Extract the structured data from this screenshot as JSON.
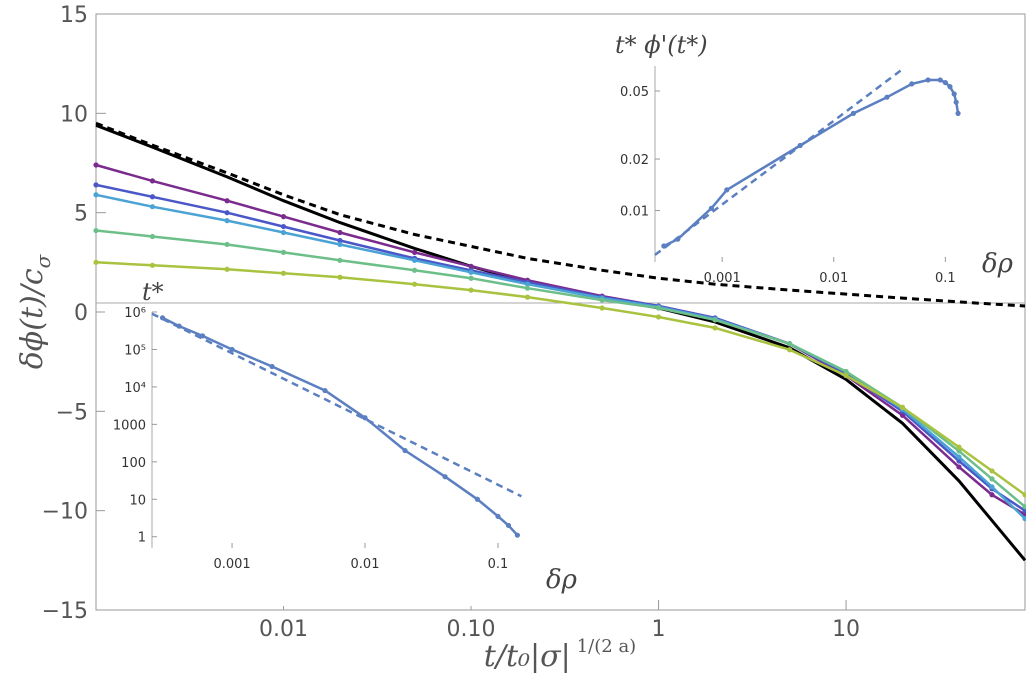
{
  "chart_data": [
    {
      "type": "line",
      "name": "main",
      "xscale": "log",
      "xlim": [
        0.001,
        90
      ],
      "ylim": [
        -15,
        15
      ],
      "xlabel": "t/t₀|σ|",
      "xlabel_exponent": "1/(2 a)",
      "ylabel": "δϕ(t)/c",
      "ylabel_subscript": "σ",
      "xticks": [
        0.01,
        0.1,
        1,
        10
      ],
      "xtick_labels": [
        "0.01",
        "0.10",
        "1",
        "10"
      ],
      "yticks": [
        -15,
        -10,
        -5,
        0,
        5,
        10,
        15
      ],
      "ytick_labels": [
        "−15",
        "−10",
        "−5",
        "0",
        "5",
        "10",
        "15"
      ],
      "series": [
        {
          "name": "black-solid",
          "color": "#000000",
          "dashed": false,
          "markers": false,
          "x": [
            0.001,
            0.002,
            0.005,
            0.01,
            0.02,
            0.05,
            0.1,
            0.2,
            0.5,
            1,
            2,
            5,
            10,
            20,
            40,
            60,
            90
          ],
          "y": [
            9.4,
            8.3,
            6.8,
            5.6,
            4.5,
            3.2,
            2.3,
            1.5,
            0.7,
            0.2,
            -0.5,
            -1.8,
            -3.4,
            -5.6,
            -8.5,
            -10.5,
            -12.5
          ]
        },
        {
          "name": "black-dashed",
          "color": "#000000",
          "dashed": true,
          "markers": false,
          "x": [
            0.001,
            0.002,
            0.005,
            0.01,
            0.02,
            0.05,
            0.1,
            0.2,
            0.5,
            1,
            2,
            5,
            10,
            20,
            50,
            90
          ],
          "y": [
            9.5,
            8.4,
            7.0,
            5.9,
            4.9,
            3.9,
            3.3,
            2.7,
            2.1,
            1.7,
            1.4,
            1.1,
            0.9,
            0.7,
            0.45,
            0.3
          ]
        },
        {
          "name": "purple",
          "color": "#7b2b8e",
          "dashed": false,
          "markers": true,
          "x": [
            0.001,
            0.002,
            0.005,
            0.01,
            0.02,
            0.05,
            0.1,
            0.2,
            0.5,
            1,
            2,
            5,
            10,
            20,
            40,
            60,
            90
          ],
          "y": [
            7.4,
            6.6,
            5.6,
            4.8,
            4.0,
            3.0,
            2.3,
            1.6,
            0.8,
            0.3,
            -0.3,
            -1.6,
            -3.2,
            -5.2,
            -7.8,
            -9.2,
            -10.2
          ]
        },
        {
          "name": "blue",
          "color": "#4a57c8",
          "dashed": false,
          "markers": true,
          "x": [
            0.001,
            0.002,
            0.005,
            0.01,
            0.02,
            0.05,
            0.1,
            0.2,
            0.5,
            1,
            2,
            5,
            10,
            20,
            40,
            60,
            90
          ],
          "y": [
            6.4,
            5.8,
            5.0,
            4.3,
            3.6,
            2.7,
            2.1,
            1.5,
            0.75,
            0.3,
            -0.3,
            -1.6,
            -3.1,
            -5.0,
            -7.5,
            -8.9,
            -10.0
          ]
        },
        {
          "name": "cyan",
          "color": "#4aa3d4",
          "dashed": false,
          "markers": true,
          "x": [
            0.001,
            0.002,
            0.005,
            0.01,
            0.02,
            0.05,
            0.1,
            0.2,
            0.5,
            1,
            2,
            5,
            10,
            20,
            40,
            60,
            90
          ],
          "y": [
            5.9,
            5.3,
            4.6,
            4.0,
            3.4,
            2.6,
            2.0,
            1.4,
            0.7,
            0.25,
            -0.35,
            -1.6,
            -3.0,
            -4.9,
            -7.3,
            -8.8,
            -10.4
          ]
        },
        {
          "name": "green",
          "color": "#6dbf8a",
          "dashed": false,
          "markers": true,
          "x": [
            0.001,
            0.002,
            0.005,
            0.01,
            0.02,
            0.05,
            0.1,
            0.2,
            0.5,
            1,
            2,
            5,
            10,
            20,
            40,
            60,
            90
          ],
          "y": [
            4.1,
            3.8,
            3.4,
            3.0,
            2.6,
            2.1,
            1.7,
            1.2,
            0.6,
            0.2,
            -0.4,
            -1.6,
            -3.0,
            -4.8,
            -7.0,
            -8.4,
            -9.8
          ]
        },
        {
          "name": "yellow-green",
          "color": "#a9c23f",
          "dashed": false,
          "markers": true,
          "x": [
            0.001,
            0.002,
            0.005,
            0.01,
            0.02,
            0.05,
            0.1,
            0.2,
            0.5,
            1,
            2,
            5,
            10,
            20,
            40,
            60,
            90
          ],
          "y": [
            2.5,
            2.35,
            2.15,
            1.95,
            1.75,
            1.4,
            1.1,
            0.75,
            0.2,
            -0.25,
            -0.8,
            -1.9,
            -3.2,
            -4.8,
            -6.8,
            -8.0,
            -9.2
          ]
        }
      ]
    },
    {
      "type": "line",
      "name": "inset-top",
      "xscale": "log",
      "yscale": "log",
      "xlim": [
        0.00025,
        0.15
      ],
      "ylim": [
        0.005,
        0.07
      ],
      "title": "t* ϕ'(t*)",
      "xlabel": "δρ",
      "xticks": [
        0.001,
        0.01,
        0.1
      ],
      "xtick_labels": [
        "0.001",
        "0.01",
        "0.1"
      ],
      "yticks": [
        0.01,
        0.02,
        0.05
      ],
      "ytick_labels": [
        "0.01",
        "0.02",
        "0.05"
      ],
      "series": [
        {
          "name": "data",
          "color": "#5b7fc0",
          "dashed": false,
          "markers": true,
          "x": [
            0.0003,
            0.0004,
            0.0008,
            0.0011,
            0.005,
            0.015,
            0.03,
            0.05,
            0.07,
            0.09,
            0.1,
            0.11,
            0.12,
            0.125,
            0.13
          ],
          "y": [
            0.0062,
            0.0068,
            0.0103,
            0.0132,
            0.024,
            0.037,
            0.046,
            0.055,
            0.058,
            0.058,
            0.056,
            0.053,
            0.048,
            0.043,
            0.037
          ]
        },
        {
          "name": "fit",
          "color": "#5b7fc0",
          "dashed": true,
          "markers": false,
          "x": [
            0.00025,
            0.04
          ],
          "y": [
            0.0055,
            0.066
          ]
        }
      ]
    },
    {
      "type": "line",
      "name": "inset-bottom",
      "xscale": "log",
      "yscale": "log",
      "xlim": [
        0.00025,
        0.2
      ],
      "ylim": [
        0.5,
        1000000
      ],
      "title": "t*",
      "xlabel": "δρ",
      "xticks": [
        0.001,
        0.01,
        0.1
      ],
      "xtick_labels": [
        "0.001",
        "0.01",
        "0.1"
      ],
      "yticks": [
        1,
        10,
        100,
        1000,
        10000,
        100000,
        1000000
      ],
      "ytick_labels": [
        "1",
        "10",
        "100",
        "1000",
        "10⁴",
        "10⁵",
        "10⁶"
      ],
      "series": [
        {
          "name": "data",
          "color": "#5b7fc0",
          "dashed": false,
          "markers": true,
          "x": [
            0.0003,
            0.0004,
            0.0006,
            0.001,
            0.002,
            0.005,
            0.01,
            0.02,
            0.04,
            0.07,
            0.1,
            0.12,
            0.14
          ],
          "y": [
            700000,
            420000,
            230000,
            100000,
            35000,
            8000,
            1500,
            200,
            40,
            10,
            3.5,
            2,
            1.1
          ]
        },
        {
          "name": "fit",
          "color": "#5b7fc0",
          "dashed": true,
          "markers": false,
          "x": [
            0.00025,
            0.15
          ],
          "y": [
            900000,
            12
          ]
        }
      ]
    }
  ]
}
